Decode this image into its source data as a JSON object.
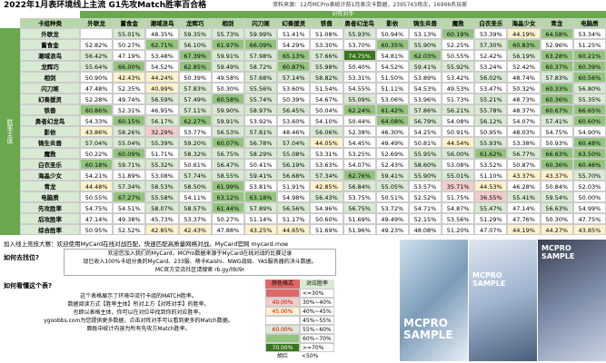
{
  "header": {
    "title": "2022年1月表环境线上主流 G1先攻Match胜率百合格",
    "source": "资料来源：12月MCPro表统计前1月表次卡数据，2395743场次，16996名玩家"
  },
  "table": {
    "opponent_label": "对阵对手",
    "subject_label": "胜率主体",
    "corner": "卡组种类",
    "columns": [
      "外联龙",
      "蓄食金",
      "潮域浪鸟",
      "龙辉巧",
      "相剑",
      "闪刀姬",
      "幻奏援灵",
      "铁兽",
      "勇者幻龙鸟",
      "影依",
      "铸生炎兽",
      "魔救",
      "白衣圣乐",
      "海晶少女",
      "青龙",
      "电脑质"
    ],
    "rows": [
      {
        "name": "外联龙",
        "cells": [
          null,
          "55.01%",
          "48.35%",
          "59.35%",
          "55.73%",
          "59.99%",
          "51.41%",
          "51.08%",
          "55.93%",
          "50.94%",
          "53.13%",
          "60.19%",
          "53.39%",
          "44.19%",
          "64.58%",
          "53.34%"
        ]
      },
      {
        "name": "蓄食金",
        "cells": [
          "52.82%",
          "50.27%",
          "62.71%",
          "56.10%",
          "61.97%",
          "66.09%",
          "54.29%",
          "53.30%",
          "53.70%",
          "60.35%",
          "55.90%",
          "52.25%",
          "57.30%",
          "60.83%",
          "52.96%",
          "51.25%"
        ]
      },
      {
        "name": "潮域浪鸟",
        "cells": [
          "56.42%",
          "47.19%",
          "53.48%",
          "67.39%",
          "59.91%",
          "57.98%",
          "65.13%",
          "57.66%",
          "74.75%",
          "54.81%",
          "62.03%",
          "50.55%",
          "52.42%",
          "56.19%",
          "63.28%",
          "60.21%"
        ]
      },
      {
        "name": "龙辉巧",
        "cells": [
          "55.64%",
          "66.00%",
          "54.52%",
          "62.85%",
          "59.49%",
          "58.72%",
          "60.87%",
          "55.98%",
          "50.40%",
          "54.52%",
          "59.41%",
          "55.92%",
          "53.24%",
          "52.42%",
          "60.37%",
          "60.39%"
        ]
      },
      {
        "name": "相剑",
        "cells": [
          "50.90%",
          "42.43%",
          "44.24%",
          "50.39%",
          "49.58%",
          "57.68%",
          "57.14%",
          "58.82%",
          "53.31%",
          "51.50%",
          "53.89%",
          "53.42%",
          "56.02%",
          "48.74%",
          "57.83%",
          "60.56%"
        ]
      },
      {
        "name": "闪刀姬",
        "cells": [
          "47.48%",
          "52.35%",
          "40.99%",
          "57.83%",
          "50.30%",
          "55.56%",
          "53.60%",
          "51.54%",
          "54.55%",
          "51.11%",
          "54.53%",
          "49.53%",
          "53.47%",
          "50.32%",
          "60.33%",
          "56.80%"
        ]
      },
      {
        "name": "幻奏援灵",
        "cells": [
          "52.28%",
          "49.74%",
          "56.59%",
          "57.49%",
          "60.58%",
          "55.74%",
          "50.39%",
          "54.67%",
          "55.09%",
          "53.06%",
          "53.96%",
          "51.73%",
          "55.21%",
          "48.73%",
          "60.36%",
          "55.35%"
        ]
      },
      {
        "name": "铁兽",
        "cells": [
          "60.86%",
          "52.31%",
          "46.95%",
          "57.11%",
          "59.90%",
          "58.97%",
          "56.45%",
          "50.04%",
          "62.24%",
          "61.42%",
          "57.86%",
          "56.21%",
          "55.78%",
          "48.37%",
          "60.67%",
          "66.65%"
        ]
      },
      {
        "name": "勇者幻龙鸟",
        "cells": [
          "54.33%",
          "60.15%",
          "56.17%",
          "62.27%",
          "59.91%",
          "53.92%",
          "53.60%",
          "54.10%",
          "50.44%",
          "64.08%",
          "56.79%",
          "54.08%",
          "56.12%",
          "54.07%",
          "57.41%",
          "60.60%"
        ]
      },
      {
        "name": "影依",
        "cells": [
          "43.86%",
          "58.26%",
          "32.29%",
          "53.77%",
          "56.53%",
          "57.81%",
          "48.46%",
          "56.06%",
          "52.38%",
          "46.30%",
          "54.25%",
          "50.91%",
          "50.95%",
          "48.03%",
          "54.75%",
          "54.90%"
        ]
      },
      {
        "name": "铸生炎兽",
        "cells": [
          "57.04%",
          "55.04%",
          "55.39%",
          "59.20%",
          "60.07%",
          "56.78%",
          "57.04%",
          "44.05%",
          "54.45%",
          "49.49%",
          "50.81%",
          "44.54%",
          "55.93%",
          "53.38%",
          "50.93%",
          "60.48%"
        ]
      },
      {
        "name": "魔救",
        "cells": [
          "50.22%",
          "60.09%",
          "51.71%",
          "58.32%",
          "56.75%",
          "58.29%",
          "55.08%",
          "53.31%",
          "53.25%",
          "52.69%",
          "55.95%",
          "56.00%",
          "61.62%",
          "56.77%",
          "66.63%",
          "63.50%"
        ]
      },
      {
        "name": "白衣圣乐",
        "cells": [
          "60.18%",
          "59.71%",
          "55.32%",
          "50.61%",
          "56.47%",
          "50.41%",
          "56.19%",
          "53.63%",
          "54.07%",
          "52.43%",
          "58.60%",
          "53.08%",
          "53.52%",
          "50.87%",
          "60.36%",
          "60.46%"
        ]
      },
      {
        "name": "海晶少女",
        "cells": [
          "54.21%",
          "51.89%",
          "53.08%",
          "57.74%",
          "58.55%",
          "59.41%",
          "56.68%",
          "57.34%",
          "62.76%",
          "59.41%",
          "55.90%",
          "55.01%",
          "51.10%",
          "43.37%",
          "43.37%",
          "55.70%"
        ]
      },
      {
        "name": "青龙",
        "cells": [
          "44.48%",
          "57.34%",
          "58.53%",
          "58.50%",
          "61.99%",
          "53.81%",
          "51.91%",
          "42.85%",
          "56.84%",
          "55.05%",
          "53.57%",
          "35.71%",
          "44.53%",
          "46.28%",
          "50.84%",
          "52.03%"
        ]
      },
      {
        "name": "电脑质",
        "cells": [
          "50.55%",
          "67.27%",
          "55.58%",
          "54.11%",
          "63.12%",
          "63.18%",
          "54.98%",
          "56.43%",
          "53.75%",
          "50.51%",
          "52.52%",
          "51.75%",
          "36.55%",
          "55.41%",
          "59.54%",
          "50.00%"
        ]
      },
      {
        "name": "先攻胜率",
        "cells": [
          "54.75%",
          "54.51%",
          "58.07%",
          "58.57%",
          "61.44%",
          "57.89%",
          "56.56%",
          "54.96%",
          "56.75%",
          "53.72%",
          "54.71%",
          "54.87%",
          "55.47%",
          "47.14%",
          "56.63%",
          "54.99%"
        ]
      },
      {
        "name": "后攻胜率",
        "cells": [
          "47.14%",
          "49.38%",
          "45.73%",
          "53.37%",
          "50.27%",
          "51.14%",
          "51.17%",
          "50.60%",
          "51.69%",
          "49.49%",
          "52.15%",
          "53.56%",
          "51.29%",
          "47.76%",
          "50.30%",
          "47.75%"
        ]
      },
      {
        "name": "综合胜率",
        "cells": [
          "50.95%",
          "52.52%",
          "42.85%",
          "42.43%",
          "47.88%",
          "43.25%",
          "44.65%",
          "51.69%",
          "51.96%",
          "49.23%",
          "48.08%",
          "51.20%",
          "47.07%",
          "44.19%",
          "44.27%",
          "43.85%"
        ]
      }
    ]
  },
  "notes": {
    "join": "加入线上竞技大赛：欢迎使用MyCard在线对战匹配，快速匹配高质量网络对战。MyCard官网 mycard.moe",
    "find_title": "如何去找位?",
    "find_lines": [
      "欢迎您加入我们的MyCard，MCPro数据来源于MyCard在线对战的比赛记录",
      "现已收入100%卡组分类的MyCard、233服、萌卡Kaishi、NWG战局、YAS服务器的决斗数据。",
      "MC官方交流社区请搜索 rb.gy/ltkl9r"
    ],
    "read_title": "如何看懂这个表?",
    "read_lines": [
      "这个表格展示了环境中流行卡组的MATCH胜率。",
      "数据阅读方式【胜率主体】所对上方【对阵对手】的胜率。",
      "也即以表格主体，你可以在对位中找到你的对应胜率。",
      "ygoobbs.com为您提供更多数据，点击对阵对手可以看到更多的Match数据。",
      "面板中统计内容为所有先攻方Match胜率。"
    ]
  },
  "legend": {
    "headers": [
      "颜色格式",
      "对应胜率"
    ],
    "rows": [
      {
        "range": "<=30%",
        "color": "#e06666"
      },
      {
        "swatch": "40.00%",
        "range": "30%~40%",
        "color": "#f4cccc"
      },
      {
        "swatch": "45.00%",
        "range": "40%~45%",
        "color": "#fff2cc"
      },
      {
        "range": "45%~55%",
        "color": "#ffffff"
      },
      {
        "swatch": "60.00%",
        "range": "55%~60%",
        "color": "#d9ead3"
      },
      {
        "range": "60%~70%",
        "color": "#93c47d"
      },
      {
        "swatch": "70.00%",
        "range": ">=70%",
        "color": "#38761d"
      }
    ],
    "note": {
      "label": "胡烂",
      "range": "<50%"
    }
  },
  "images": [
    {
      "watermark": "MCPRO SAMPLE"
    },
    {
      "watermark": "MCPRO SAMPLE"
    },
    {
      "watermark": "MCPRO SAMPLE"
    }
  ]
}
